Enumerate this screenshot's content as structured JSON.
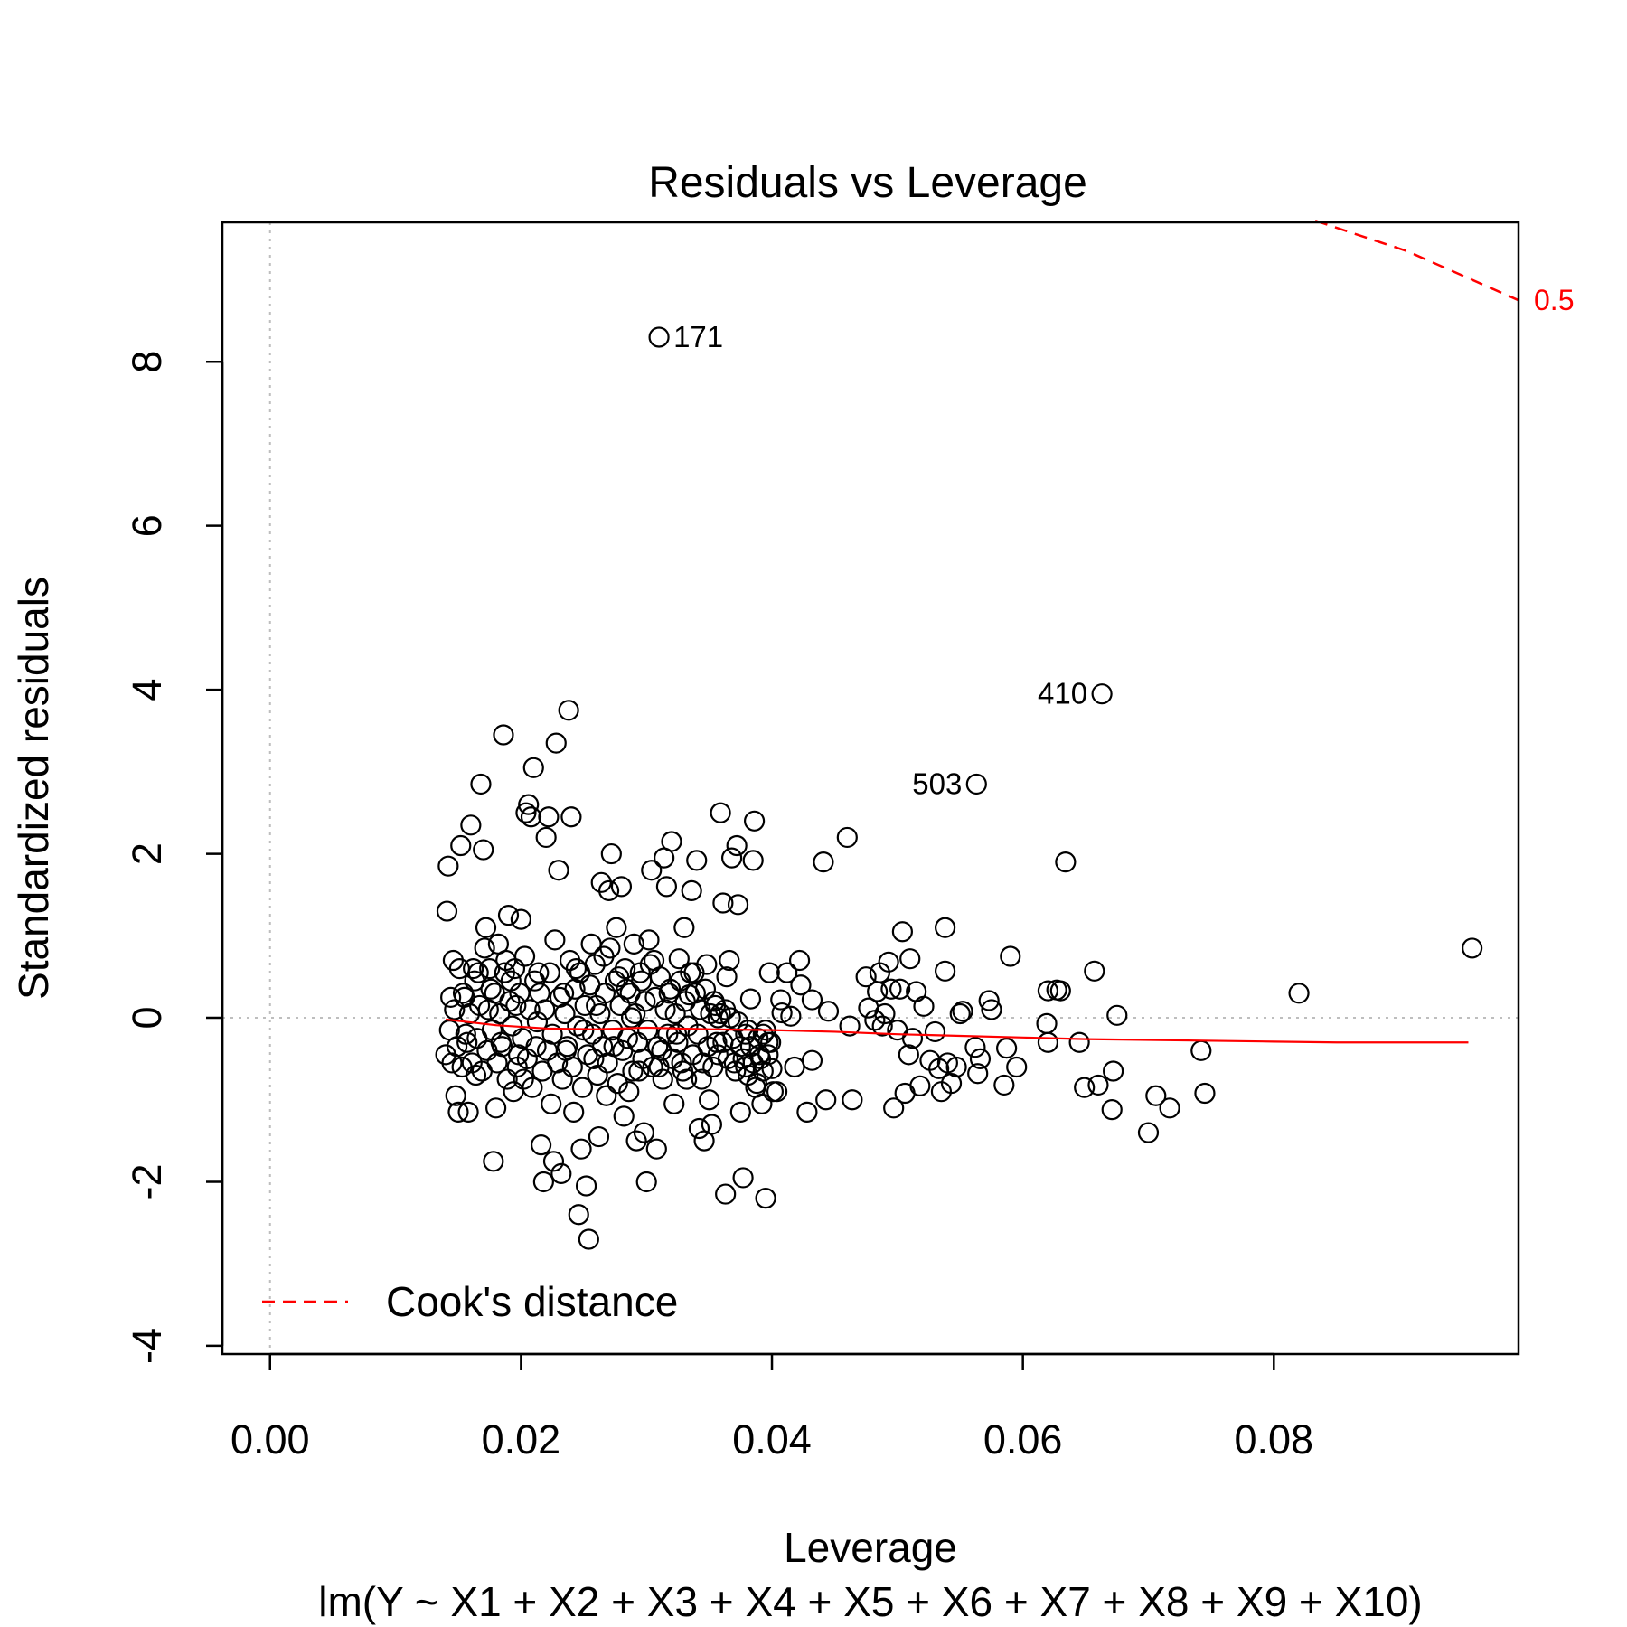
{
  "chart_data": {
    "type": "scatter",
    "title": "Residuals vs Leverage",
    "xlabel": "Leverage",
    "ylabel": "Standardized residuals",
    "subtitle": "lm(Y ~ X1 + X2 + X3 + X4 + X5 + X6 + X7 + X8 + X9 + X10)",
    "xlim": [
      -0.0038,
      0.0995
    ],
    "ylim": [
      -4.1,
      9.7
    ],
    "x_ticks": [
      0.0,
      0.02,
      0.04,
      0.06,
      0.08
    ],
    "x_tick_labels": [
      "0.00",
      "0.02",
      "0.04",
      "0.06",
      "0.08"
    ],
    "y_ticks": [
      -4,
      -2,
      0,
      2,
      4,
      6,
      8
    ],
    "y_tick_labels": [
      "-4",
      "-2",
      "0",
      "2",
      "4",
      "6",
      "8"
    ],
    "grid": false,
    "reference_lines": {
      "x": 0,
      "y": 0,
      "color": "#bebebe",
      "style": "dotted"
    },
    "legend": {
      "position": "bottom-left",
      "entries": [
        "Cook's distance"
      ],
      "color": "#ff0000",
      "style": "dashed"
    },
    "cooks_distance": {
      "label": "0.5",
      "color": "#ff0000",
      "points": [
        [
          0.0833,
          9.72
        ],
        [
          0.0906,
          9.35
        ],
        [
          0.0995,
          8.75
        ]
      ]
    },
    "smooth_line": {
      "color": "#ff0000",
      "points": [
        [
          0.014,
          -0.02
        ],
        [
          0.018,
          -0.09
        ],
        [
          0.022,
          -0.13
        ],
        [
          0.026,
          -0.14
        ],
        [
          0.03,
          -0.12
        ],
        [
          0.035,
          -0.14
        ],
        [
          0.04,
          -0.15
        ],
        [
          0.045,
          -0.17
        ],
        [
          0.05,
          -0.2
        ],
        [
          0.055,
          -0.22
        ],
        [
          0.06,
          -0.24
        ],
        [
          0.065,
          -0.26
        ],
        [
          0.07,
          -0.27
        ],
        [
          0.075,
          -0.28
        ],
        [
          0.08,
          -0.29
        ],
        [
          0.085,
          -0.3
        ],
        [
          0.0955,
          -0.3
        ]
      ]
    },
    "labeled_points": [
      {
        "label": "171",
        "x": 0.031,
        "y": 8.3
      },
      {
        "label": "410",
        "x": 0.0663,
        "y": 3.95
      },
      {
        "label": "503",
        "x": 0.0563,
        "y": 2.85
      }
    ],
    "points": [
      [
        0.031,
        8.3
      ],
      [
        0.0663,
        3.95
      ],
      [
        0.0563,
        2.85
      ],
      [
        0.0958,
        0.85
      ],
      [
        0.082,
        0.3
      ],
      [
        0.0745,
        -0.92
      ],
      [
        0.0742,
        -0.4
      ],
      [
        0.0717,
        -1.1
      ],
      [
        0.0706,
        -0.95
      ],
      [
        0.07,
        -1.4
      ],
      [
        0.0675,
        0.03
      ],
      [
        0.0672,
        -0.65
      ],
      [
        0.0671,
        -1.12
      ],
      [
        0.066,
        -0.82
      ],
      [
        0.0649,
        -0.85
      ],
      [
        0.0645,
        -0.3
      ],
      [
        0.0657,
        0.57
      ],
      [
        0.0634,
        1.9
      ],
      [
        0.063,
        0.33
      ],
      [
        0.0627,
        0.34
      ],
      [
        0.062,
        0.33
      ],
      [
        0.0619,
        -0.07
      ],
      [
        0.062,
        -0.3
      ],
      [
        0.0595,
        -0.6
      ],
      [
        0.059,
        0.75
      ],
      [
        0.0587,
        -0.37
      ],
      [
        0.0585,
        -0.82
      ],
      [
        0.0575,
        0.1
      ],
      [
        0.0573,
        0.21
      ],
      [
        0.0566,
        -0.5
      ],
      [
        0.0564,
        -0.68
      ],
      [
        0.0562,
        -0.36
      ],
      [
        0.0552,
        0.08
      ],
      [
        0.055,
        0.05
      ],
      [
        0.0547,
        -0.6
      ],
      [
        0.0543,
        -0.8
      ],
      [
        0.054,
        -0.55
      ],
      [
        0.0538,
        1.1
      ],
      [
        0.0538,
        0.57
      ],
      [
        0.0535,
        -0.9
      ],
      [
        0.0533,
        -0.62
      ],
      [
        0.053,
        -0.17
      ],
      [
        0.0526,
        -0.52
      ],
      [
        0.0521,
        0.14
      ],
      [
        0.0518,
        -0.83
      ],
      [
        0.0515,
        0.32
      ],
      [
        0.0512,
        -0.25
      ],
      [
        0.051,
        0.72
      ],
      [
        0.0509,
        -0.45
      ],
      [
        0.0506,
        -0.92
      ],
      [
        0.0504,
        1.05
      ],
      [
        0.0502,
        0.35
      ],
      [
        0.05,
        -0.15
      ],
      [
        0.0497,
        -1.1
      ],
      [
        0.0495,
        0.35
      ],
      [
        0.0493,
        0.68
      ],
      [
        0.049,
        0.05
      ],
      [
        0.0488,
        -0.1
      ],
      [
        0.0486,
        0.55
      ],
      [
        0.0484,
        0.32
      ],
      [
        0.0482,
        -0.03
      ],
      [
        0.0477,
        0.12
      ],
      [
        0.0475,
        0.5
      ],
      [
        0.0464,
        -1.0
      ],
      [
        0.0462,
        -0.1
      ],
      [
        0.046,
        2.2
      ],
      [
        0.0445,
        0.08
      ],
      [
        0.0443,
        -1.0
      ],
      [
        0.0441,
        1.9
      ],
      [
        0.0432,
        0.22
      ],
      [
        0.0432,
        -0.52
      ],
      [
        0.0428,
        -1.15
      ],
      [
        0.0423,
        0.4
      ],
      [
        0.0422,
        0.7
      ],
      [
        0.0418,
        -0.6
      ],
      [
        0.0415,
        0.02
      ],
      [
        0.0412,
        0.55
      ],
      [
        0.0408,
        0.06
      ],
      [
        0.0407,
        0.22
      ],
      [
        0.0404,
        -0.9
      ],
      [
        0.0401,
        -0.9
      ],
      [
        0.04,
        -0.62
      ],
      [
        0.0398,
        0.55
      ],
      [
        0.0397,
        -0.3
      ],
      [
        0.0395,
        -2.2
      ],
      [
        0.0393,
        -0.2
      ],
      [
        0.0392,
        -1.05
      ],
      [
        0.039,
        -0.45
      ],
      [
        0.0388,
        -0.8
      ],
      [
        0.0386,
        2.4
      ],
      [
        0.0385,
        1.92
      ],
      [
        0.0383,
        0.23
      ],
      [
        0.0381,
        -0.15
      ],
      [
        0.0379,
        -0.6
      ],
      [
        0.0377,
        -1.95
      ],
      [
        0.0375,
        -1.15
      ],
      [
        0.0373,
        1.38
      ],
      [
        0.0372,
        2.1
      ],
      [
        0.037,
        -0.55
      ],
      [
        0.0368,
        1.95
      ],
      [
        0.0366,
        0.7
      ],
      [
        0.0364,
        0.5
      ],
      [
        0.0363,
        -2.15
      ],
      [
        0.0361,
        1.4
      ],
      [
        0.0359,
        2.5
      ],
      [
        0.0357,
        0.0
      ],
      [
        0.0356,
        -0.3
      ],
      [
        0.0354,
        0.2
      ],
      [
        0.0352,
        -1.3
      ],
      [
        0.035,
        -1.0
      ],
      [
        0.0348,
        0.65
      ],
      [
        0.0346,
        -1.5
      ],
      [
        0.0344,
        -0.75
      ],
      [
        0.0342,
        -1.35
      ],
      [
        0.034,
        1.92
      ],
      [
        0.0338,
        0.55
      ],
      [
        0.0336,
        1.55
      ],
      [
        0.0334,
        0.28
      ],
      [
        0.0332,
        -0.75
      ],
      [
        0.033,
        1.1
      ],
      [
        0.0328,
        -0.55
      ],
      [
        0.0326,
        0.72
      ],
      [
        0.0324,
        -0.2
      ],
      [
        0.0322,
        -1.05
      ],
      [
        0.032,
        2.15
      ],
      [
        0.0318,
        0.3
      ],
      [
        0.0316,
        1.6
      ],
      [
        0.0314,
        1.95
      ],
      [
        0.0312,
        -0.4
      ],
      [
        0.031,
        -0.6
      ],
      [
        0.0308,
        -1.6
      ],
      [
        0.0306,
        0.7
      ],
      [
        0.0304,
        1.8
      ],
      [
        0.0302,
        0.95
      ],
      [
        0.03,
        -2.0
      ],
      [
        0.0298,
        -1.4
      ],
      [
        0.0296,
        0.45
      ],
      [
        0.0294,
        -0.65
      ],
      [
        0.0292,
        -1.5
      ],
      [
        0.029,
        0.9
      ],
      [
        0.0288,
        0.0
      ],
      [
        0.0286,
        -0.9
      ],
      [
        0.0284,
        0.35
      ],
      [
        0.0282,
        -1.2
      ],
      [
        0.028,
        1.6
      ],
      [
        0.0278,
        0.5
      ],
      [
        0.0276,
        1.1
      ],
      [
        0.0274,
        -0.35
      ],
      [
        0.0272,
        2.0
      ],
      [
        0.027,
        1.55
      ],
      [
        0.0268,
        -0.95
      ],
      [
        0.0266,
        0.75
      ],
      [
        0.0264,
        1.65
      ],
      [
        0.0262,
        -1.45
      ],
      [
        0.026,
        0.15
      ],
      [
        0.0258,
        -0.5
      ],
      [
        0.0256,
        0.9
      ],
      [
        0.0254,
        -2.7
      ],
      [
        0.0252,
        -2.05
      ],
      [
        0.025,
        -0.15
      ],
      [
        0.0248,
        -1.6
      ],
      [
        0.0246,
        -2.4
      ],
      [
        0.0244,
        0.6
      ],
      [
        0.0242,
        -1.15
      ],
      [
        0.024,
        2.45
      ],
      [
        0.0238,
        3.75
      ],
      [
        0.0236,
        -0.4
      ],
      [
        0.0234,
        0.3
      ],
      [
        0.0232,
        -1.9
      ],
      [
        0.023,
        1.8
      ],
      [
        0.0228,
        3.35
      ],
      [
        0.0226,
        -1.75
      ],
      [
        0.0224,
        -1.05
      ],
      [
        0.0222,
        2.45
      ],
      [
        0.022,
        2.2
      ],
      [
        0.0218,
        -2.0
      ],
      [
        0.0216,
        -1.55
      ],
      [
        0.0214,
        0.55
      ],
      [
        0.0212,
        -0.35
      ],
      [
        0.021,
        3.05
      ],
      [
        0.0208,
        2.45
      ],
      [
        0.0206,
        2.6
      ],
      [
        0.0204,
        2.5
      ],
      [
        0.0202,
        -0.75
      ],
      [
        0.02,
        1.2
      ],
      [
        0.0198,
        -0.45
      ],
      [
        0.0196,
        0.15
      ],
      [
        0.0194,
        -0.9
      ],
      [
        0.0192,
        0.45
      ],
      [
        0.019,
        1.25
      ],
      [
        0.0188,
        0.7
      ],
      [
        0.0186,
        3.45
      ],
      [
        0.0184,
        -0.3
      ],
      [
        0.0182,
        0.9
      ],
      [
        0.018,
        -1.1
      ],
      [
        0.0178,
        -1.75
      ],
      [
        0.0176,
        0.35
      ],
      [
        0.0174,
        0.1
      ],
      [
        0.0172,
        1.1
      ],
      [
        0.017,
        2.05
      ],
      [
        0.0168,
        2.85
      ],
      [
        0.0166,
        0.55
      ],
      [
        0.0164,
        -0.7
      ],
      [
        0.0162,
        0.6
      ],
      [
        0.016,
        2.35
      ],
      [
        0.0158,
        -1.15
      ],
      [
        0.0156,
        -0.2
      ],
      [
        0.0154,
        0.3
      ],
      [
        0.0152,
        2.1
      ],
      [
        0.015,
        -1.15
      ],
      [
        0.0148,
        -0.95
      ],
      [
        0.0146,
        0.7
      ],
      [
        0.0144,
        0.25
      ],
      [
        0.0142,
        1.85
      ],
      [
        0.014,
        -0.45
      ],
      [
        0.0141,
        1.3
      ],
      [
        0.0143,
        -0.15
      ],
      [
        0.0145,
        -0.55
      ],
      [
        0.0147,
        0.1
      ],
      [
        0.0149,
        -0.35
      ],
      [
        0.0151,
        0.6
      ],
      [
        0.0153,
        -0.6
      ],
      [
        0.0155,
        0.25
      ],
      [
        0.0157,
        -0.3
      ],
      [
        0.0159,
        0.05
      ],
      [
        0.0161,
        -0.55
      ],
      [
        0.0163,
        0.45
      ],
      [
        0.0165,
        -0.25
      ],
      [
        0.0167,
        0.15
      ],
      [
        0.0169,
        -0.65
      ],
      [
        0.0171,
        0.85
      ],
      [
        0.0173,
        -0.4
      ],
      [
        0.0175,
        0.6
      ],
      [
        0.0177,
        -0.15
      ],
      [
        0.0179,
        0.3
      ],
      [
        0.0181,
        -0.55
      ],
      [
        0.0183,
        0.05
      ],
      [
        0.0185,
        -0.35
      ],
      [
        0.0187,
        0.55
      ],
      [
        0.0189,
        -0.75
      ],
      [
        0.0191,
        0.2
      ],
      [
        0.0193,
        -0.1
      ],
      [
        0.0195,
        0.6
      ],
      [
        0.0197,
        -0.6
      ],
      [
        0.0199,
        0.3
      ],
      [
        0.0201,
        -0.25
      ],
      [
        0.0203,
        0.75
      ],
      [
        0.0205,
        -0.5
      ],
      [
        0.0207,
        0.1
      ],
      [
        0.0209,
        -0.85
      ],
      [
        0.0211,
        0.45
      ],
      [
        0.0213,
        -0.05
      ],
      [
        0.0215,
        0.3
      ],
      [
        0.0217,
        -0.65
      ],
      [
        0.0219,
        0.1
      ],
      [
        0.0221,
        -0.4
      ],
      [
        0.0223,
        0.55
      ],
      [
        0.0225,
        -0.2
      ],
      [
        0.0227,
        0.95
      ],
      [
        0.0229,
        -0.55
      ],
      [
        0.0231,
        0.25
      ],
      [
        0.0233,
        -0.75
      ],
      [
        0.0235,
        0.05
      ],
      [
        0.0237,
        -0.35
      ],
      [
        0.0239,
        0.7
      ],
      [
        0.0241,
        -0.6
      ],
      [
        0.0243,
        0.35
      ],
      [
        0.0245,
        -0.1
      ],
      [
        0.0247,
        0.55
      ],
      [
        0.0249,
        -0.85
      ],
      [
        0.0251,
        0.15
      ],
      [
        0.0253,
        -0.45
      ],
      [
        0.0255,
        0.4
      ],
      [
        0.0257,
        -0.2
      ],
      [
        0.0259,
        0.65
      ],
      [
        0.0261,
        -0.7
      ],
      [
        0.0263,
        0.05
      ],
      [
        0.0265,
        -0.35
      ],
      [
        0.0267,
        0.3
      ],
      [
        0.0269,
        -0.55
      ],
      [
        0.0271,
        0.85
      ],
      [
        0.0273,
        -0.15
      ],
      [
        0.0275,
        0.45
      ],
      [
        0.0277,
        -0.8
      ],
      [
        0.0279,
        0.15
      ],
      [
        0.0281,
        -0.4
      ],
      [
        0.0283,
        0.6
      ],
      [
        0.0285,
        -0.25
      ],
      [
        0.0287,
        0.3
      ],
      [
        0.0289,
        -0.65
      ],
      [
        0.0291,
        0.05
      ],
      [
        0.0293,
        -0.3
      ],
      [
        0.0295,
        0.55
      ],
      [
        0.0297,
        -0.5
      ],
      [
        0.0299,
        0.2
      ],
      [
        0.0301,
        -0.15
      ],
      [
        0.0303,
        0.65
      ],
      [
        0.0305,
        -0.6
      ],
      [
        0.0307,
        0.25
      ],
      [
        0.0309,
        -0.35
      ],
      [
        0.0311,
        0.5
      ],
      [
        0.0313,
        -0.75
      ],
      [
        0.0315,
        0.1
      ],
      [
        0.0317,
        -0.2
      ],
      [
        0.0319,
        0.35
      ],
      [
        0.0321,
        -0.5
      ],
      [
        0.0323,
        0.05
      ],
      [
        0.0325,
        -0.3
      ],
      [
        0.0327,
        0.45
      ],
      [
        0.0329,
        -0.65
      ],
      [
        0.0331,
        0.2
      ],
      [
        0.0333,
        -0.1
      ],
      [
        0.0335,
        0.55
      ],
      [
        0.0337,
        -0.45
      ],
      [
        0.0339,
        0.3
      ],
      [
        0.0341,
        -0.2
      ],
      [
        0.0343,
        0.1
      ],
      [
        0.0345,
        -0.55
      ],
      [
        0.0347,
        0.35
      ],
      [
        0.0349,
        -0.35
      ],
      [
        0.0351,
        0.05
      ],
      [
        0.0353,
        -0.6
      ],
      [
        0.0355,
        0.15
      ],
      [
        0.0357,
        -0.45
      ],
      [
        0.0359,
        0.05
      ],
      [
        0.0361,
        -0.3
      ],
      [
        0.0363,
        0.1
      ],
      [
        0.0365,
        -0.5
      ],
      [
        0.0367,
        0.0
      ],
      [
        0.0369,
        -0.25
      ],
      [
        0.0371,
        -0.65
      ],
      [
        0.0373,
        -0.05
      ],
      [
        0.0375,
        -0.35
      ],
      [
        0.0377,
        -0.5
      ],
      [
        0.0379,
        -0.2
      ],
      [
        0.0381,
        -0.7
      ],
      [
        0.0383,
        -0.35
      ],
      [
        0.0385,
        -0.55
      ],
      [
        0.0387,
        -0.85
      ],
      [
        0.0389,
        -0.25
      ],
      [
        0.0391,
        -0.5
      ],
      [
        0.0393,
        -0.65
      ],
      [
        0.0395,
        -0.15
      ],
      [
        0.0397,
        -0.45
      ],
      [
        0.0399,
        -0.3
      ]
    ]
  }
}
